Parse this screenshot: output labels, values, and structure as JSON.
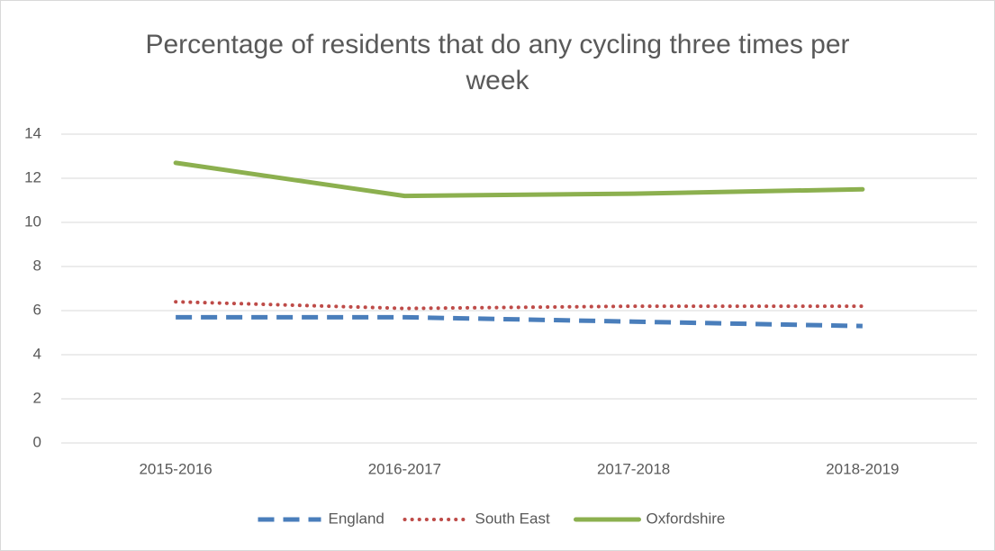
{
  "chart_data": {
    "type": "line",
    "title": "Percentage of residents that do any cycling three times per week",
    "categories": [
      "2015-2016",
      "2016-2017",
      "2017-2018",
      "2018-2019"
    ],
    "series": [
      {
        "name": "England",
        "color": "#4a7ebb",
        "style": "dashed",
        "values": [
          5.7,
          5.7,
          5.5,
          5.3
        ]
      },
      {
        "name": "South East",
        "color": "#be4b48",
        "style": "dotted",
        "values": [
          6.4,
          6.1,
          6.2,
          6.2
        ]
      },
      {
        "name": "Oxfordshire",
        "color": "#8cb04f",
        "style": "solid",
        "values": [
          12.7,
          11.2,
          11.3,
          11.5
        ]
      }
    ],
    "ylim": [
      0,
      14
    ],
    "yticks": [
      0,
      2,
      4,
      6,
      8,
      10,
      12,
      14
    ],
    "grid": true,
    "legend": "bottom"
  }
}
